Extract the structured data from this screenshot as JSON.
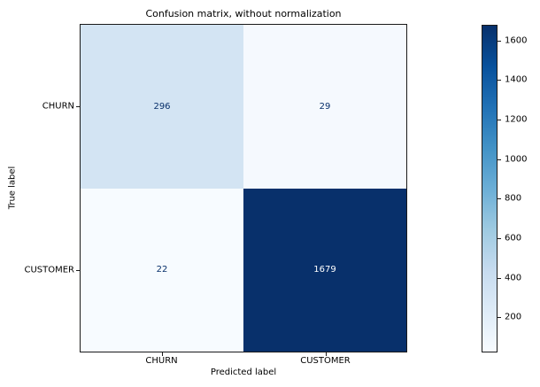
{
  "chart_data": {
    "type": "heatmap",
    "title": "Confusion matrix, without normalization",
    "xlabel": "Predicted label",
    "ylabel": "True label",
    "x_categories": [
      "CHURN",
      "CUSTOMER"
    ],
    "y_categories": [
      "CHURN",
      "CUSTOMER"
    ],
    "matrix": [
      [
        296,
        29
      ],
      [
        22,
        1679
      ]
    ],
    "colormap": "Blues",
    "vmin": 22,
    "vmax": 1679,
    "colorbar_ticks": [
      200,
      400,
      600,
      800,
      1000,
      1200,
      1400,
      1600
    ],
    "legend_position": "right-colorbar",
    "grid": false,
    "cell_colors": [
      [
        "#d3e4f3",
        "#f5f9fe"
      ],
      [
        "#f7fbff",
        "#08306b"
      ]
    ],
    "cell_text_colors": [
      [
        "#08306b",
        "#08306b"
      ],
      [
        "#08306b",
        "#ffffff"
      ]
    ]
  },
  "colors": {
    "background": "#ffffff",
    "spine": "#1a1a1a",
    "accent_dark": "#08306b"
  }
}
